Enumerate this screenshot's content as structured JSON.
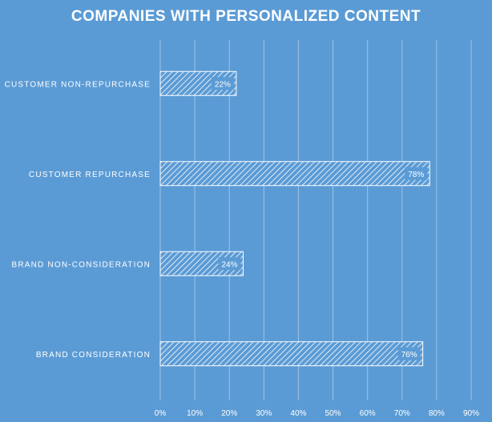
{
  "chart_data": {
    "type": "bar",
    "orientation": "horizontal",
    "title": "COMPANIES WITH PERSONALIZED CONTENT",
    "categories": [
      "CUSTOMER NON-REPURCHASE",
      "CUSTOMER REPURCHASE",
      "BRAND NON-CONSIDERATION",
      "BRAND CONSIDERATION"
    ],
    "values": [
      22,
      78,
      24,
      76
    ],
    "data_labels": [
      "22%",
      "78%",
      "24%",
      "76%"
    ],
    "xlim": [
      0,
      90
    ],
    "xticks": [
      "0%",
      "10%",
      "20%",
      "30%",
      "40%",
      "50%",
      "60%",
      "70%",
      "80%",
      "90%"
    ],
    "grid": "vertical",
    "legend": "none",
    "colors": {
      "background": "#5b9bd5",
      "bar_fill": "#5b9bd5",
      "bar_pattern": "#ffffff",
      "text": "#ffffff",
      "gridline": "#9cc3e6"
    }
  }
}
